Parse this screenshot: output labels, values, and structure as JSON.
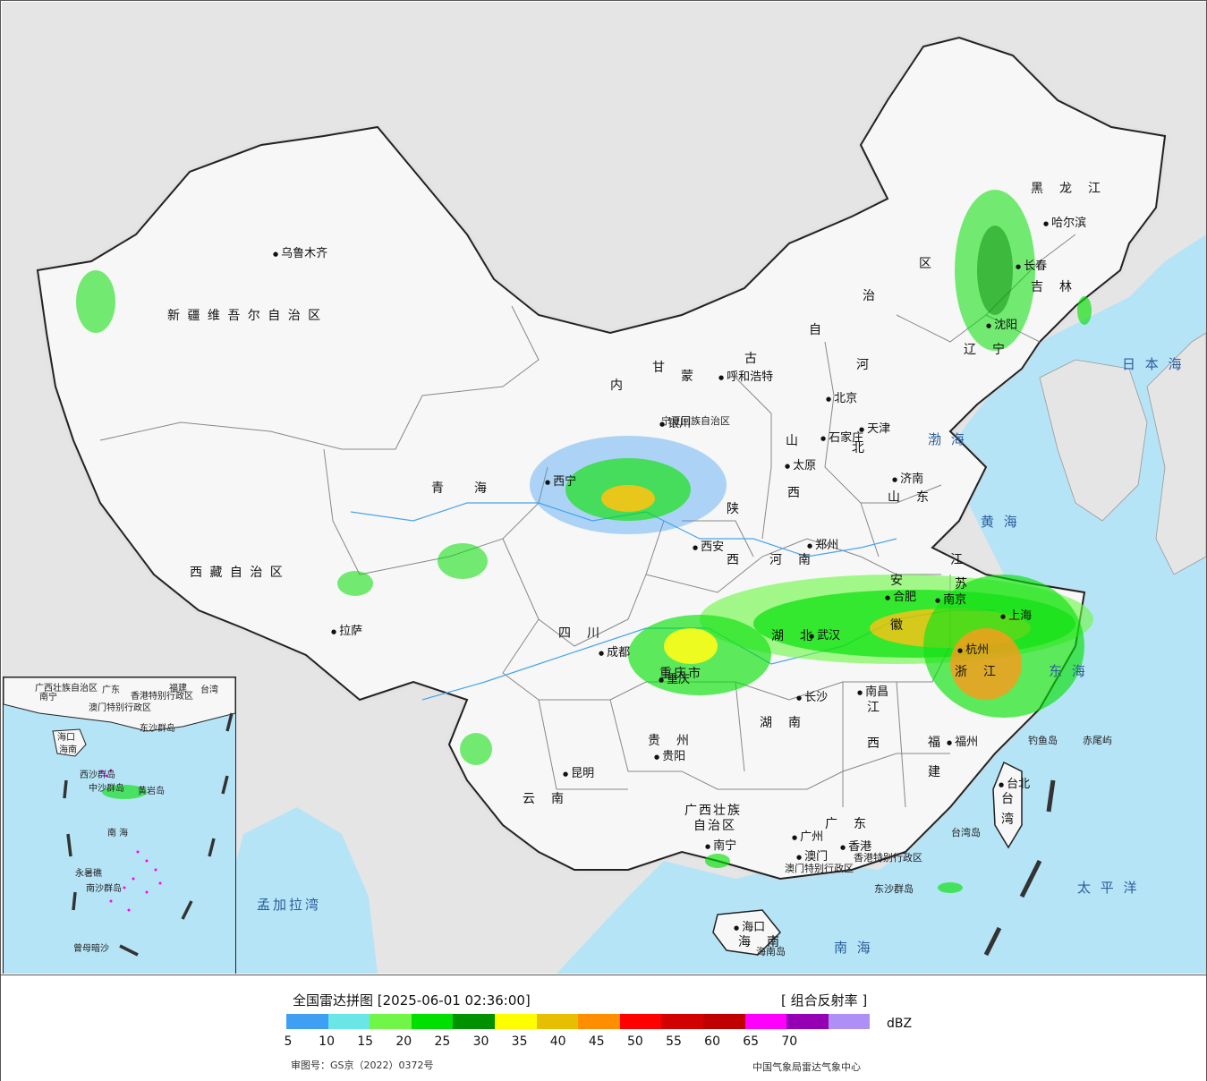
{
  "map": {
    "provinces": [
      {
        "name": "新 疆 维 吾 尔 自 治 区"
      },
      {
        "name": "西 藏 自 治 区"
      },
      {
        "name": "青　　海"
      },
      {
        "name": "甘"
      },
      {
        "name": "内"
      },
      {
        "name": "蒙"
      },
      {
        "name": "古"
      },
      {
        "name": "自"
      },
      {
        "name": "治"
      },
      {
        "name": "区"
      },
      {
        "name": "黑　龙　江"
      },
      {
        "name": "吉　林"
      },
      {
        "name": "辽　宁"
      },
      {
        "name": "河"
      },
      {
        "name": "北"
      },
      {
        "name": "山"
      },
      {
        "name": "西"
      },
      {
        "name": "陕"
      },
      {
        "name": "西"
      },
      {
        "name": "河　南"
      },
      {
        "name": "山　东"
      },
      {
        "name": "江"
      },
      {
        "name": "苏"
      },
      {
        "name": "安"
      },
      {
        "name": "徽"
      },
      {
        "name": "湖　北"
      },
      {
        "name": "四　川"
      },
      {
        "name": "重庆市"
      },
      {
        "name": "贵　州"
      },
      {
        "name": "云　南"
      },
      {
        "name": "湖　南"
      },
      {
        "name": "江"
      },
      {
        "name": "西"
      },
      {
        "name": "浙　江"
      },
      {
        "name": "福"
      },
      {
        "name": "建"
      },
      {
        "name": "广　东"
      },
      {
        "name": "广西壮族"
      },
      {
        "name": "自治区"
      },
      {
        "name": "海　南"
      },
      {
        "name": "台"
      },
      {
        "name": "湾"
      }
    ],
    "cities": [
      {
        "name": "乌鲁木齐"
      },
      {
        "name": "拉萨"
      },
      {
        "name": "西宁"
      },
      {
        "name": "银川"
      },
      {
        "name": "呼和浩特"
      },
      {
        "name": "北京"
      },
      {
        "name": "天津"
      },
      {
        "name": "石家庄"
      },
      {
        "name": "太原"
      },
      {
        "name": "济南"
      },
      {
        "name": "郑州"
      },
      {
        "name": "西安"
      },
      {
        "name": "成都"
      },
      {
        "name": "重庆"
      },
      {
        "name": "贵阳"
      },
      {
        "name": "昆明"
      },
      {
        "name": "南宁"
      },
      {
        "name": "广州"
      },
      {
        "name": "澳门"
      },
      {
        "name": "香港"
      },
      {
        "name": "海口"
      },
      {
        "name": "长沙"
      },
      {
        "name": "南昌"
      },
      {
        "name": "福州"
      },
      {
        "name": "台北"
      },
      {
        "name": "杭州"
      },
      {
        "name": "合肥"
      },
      {
        "name": "南京"
      },
      {
        "name": "上海"
      },
      {
        "name": "武汉"
      },
      {
        "name": "沈阳"
      },
      {
        "name": "长春"
      },
      {
        "name": "哈尔滨"
      }
    ],
    "seas": [
      {
        "name": "日 本 海"
      },
      {
        "name": "渤 海"
      },
      {
        "name": "黄 海"
      },
      {
        "name": "东 海"
      },
      {
        "name": "太 平 洋"
      },
      {
        "name": "南 海"
      },
      {
        "name": "孟加拉湾"
      }
    ],
    "islands": [
      {
        "name": "钓鱼岛"
      },
      {
        "name": "赤尾屿"
      },
      {
        "name": "台湾岛"
      },
      {
        "name": "东沙群岛"
      },
      {
        "name": "海南岛"
      },
      {
        "name": "香港特别行政区"
      },
      {
        "name": "澳门特别行政区"
      },
      {
        "name": "宁夏回族自治区"
      }
    ],
    "inset": {
      "labels": [
        {
          "name": "广西壮族自治区"
        },
        {
          "name": "广东"
        },
        {
          "name": "福建"
        },
        {
          "name": "台湾"
        },
        {
          "name": "南宁"
        },
        {
          "name": "香港特别行政区"
        },
        {
          "name": "澳门特别行政区"
        },
        {
          "name": "海口"
        },
        {
          "name": "海南"
        },
        {
          "name": "东沙群岛"
        },
        {
          "name": "西沙群岛"
        },
        {
          "name": "中沙群岛"
        },
        {
          "name": "黄岩岛"
        },
        {
          "name": "南 海"
        },
        {
          "name": "南沙群岛"
        },
        {
          "name": "永暑礁"
        },
        {
          "name": "曾母暗沙"
        }
      ]
    },
    "colors": {
      "land": "#f7f7f7",
      "outside": "#e5e5e5",
      "sea": "#b6e4f7",
      "border": "#222222"
    }
  },
  "legend": {
    "title": "全国雷达拼图 [2025-06-01 02:36:00]",
    "product": "[ 组合反射率 ]",
    "unit": "dBZ",
    "ticks": [
      "5",
      "10",
      "15",
      "20",
      "25",
      "30",
      "35",
      "40",
      "45",
      "50",
      "55",
      "60",
      "65",
      "70"
    ],
    "colors": [
      "#3f9ff3",
      "#6ae6e6",
      "#6ff649",
      "#00e000",
      "#009100",
      "#fefe00",
      "#e6c000",
      "#ff8f00",
      "#ff0000",
      "#d30000",
      "#c00000",
      "#ff00ff",
      "#9600b4",
      "#ae8ff5"
    ],
    "approval": "审图号：GS京（2022）0372号",
    "agency": "中国气象局雷达气象中心"
  }
}
